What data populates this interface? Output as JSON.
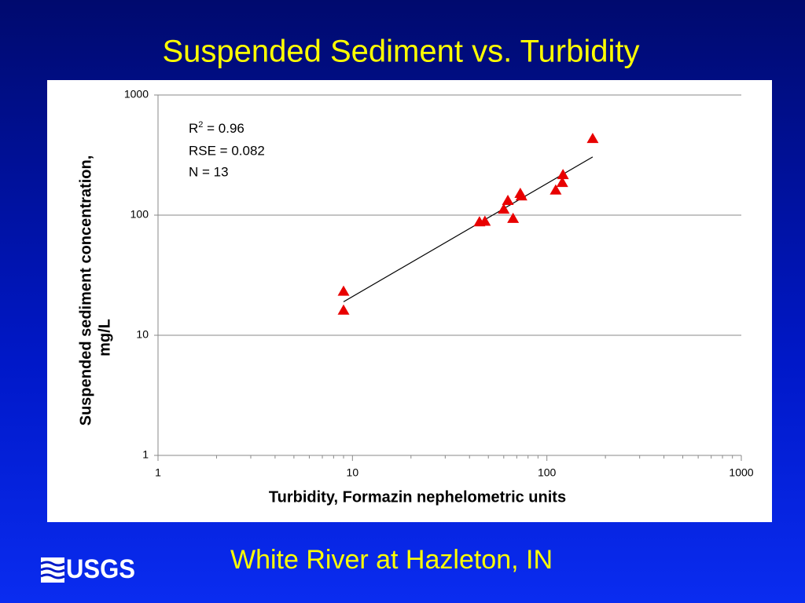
{
  "chart_data": {
    "type": "scatter",
    "title": "Suspended Sediment vs. Turbidity",
    "subtitle": "White River at Hazleton, IN",
    "logo": "USGS",
    "x_label": "Turbidity, Formazin nephelometric units",
    "y_label": [
      "Suspended sediment concentration,",
      "mg/L"
    ],
    "x": [
      9,
      9,
      45,
      48,
      60,
      63,
      67,
      73,
      74,
      111,
      120,
      121,
      172
    ],
    "values": [
      23,
      16,
      87,
      88,
      111,
      131,
      93,
      150,
      143,
      160,
      185,
      215,
      430
    ],
    "color": "#e80000",
    "fit_line": {
      "x": [
        9,
        172
      ],
      "y": [
        19,
        305
      ],
      "color": "#000000"
    },
    "stats": {
      "r_base": "R",
      "r_sup": "2",
      "r_rest": " = 0.96",
      "rse": "RSE = 0.082",
      "n": "N = 13"
    },
    "xscale": "log",
    "yscale": "log",
    "xlim": [
      1,
      1000
    ],
    "ylim": [
      1,
      1000
    ],
    "xticks": [
      1,
      10,
      100,
      1000
    ],
    "yticks": [
      1,
      10,
      100,
      1000
    ],
    "xminorticks": [
      2,
      3,
      4,
      5,
      6,
      7,
      8,
      9,
      20,
      30,
      40,
      50,
      60,
      70,
      80,
      90,
      200,
      300,
      400,
      500,
      600,
      700,
      800,
      900
    ],
    "grid": true
  }
}
